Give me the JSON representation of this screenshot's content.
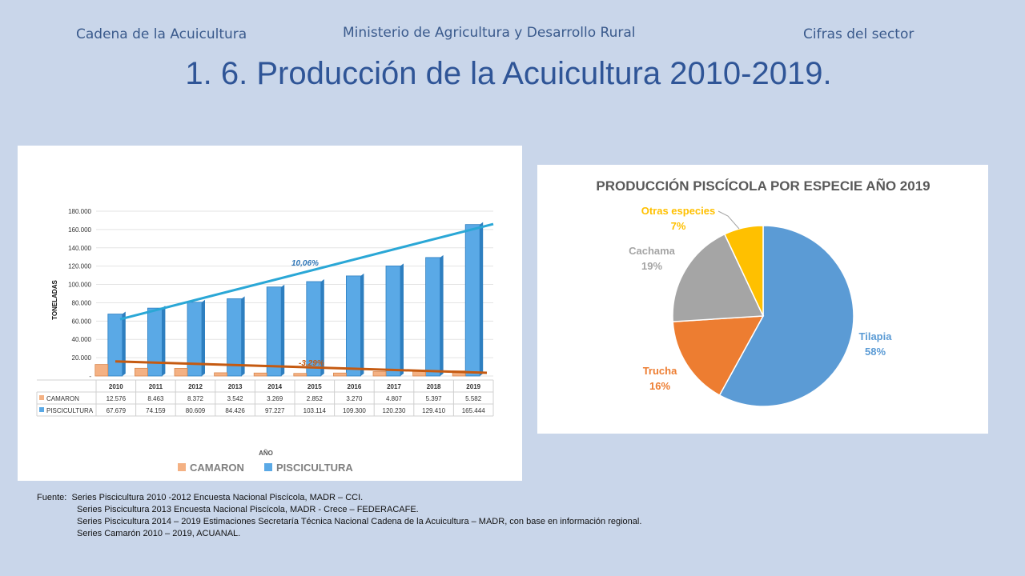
{
  "header": {
    "left": "Cadena de la Acuicultura",
    "center": "Ministerio de Agricultura y Desarrollo Rural",
    "right": "Cifras del sector"
  },
  "title": "1. 6. Producción de la Acuicultura 2010-2019.",
  "chart_data": [
    {
      "type": "bar",
      "ylabel": "TONELADAS",
      "xlabel": "AÑO",
      "ylim": [
        0,
        180000
      ],
      "y_ticks": [
        "-",
        "20.000",
        "40.000",
        "60.000",
        "80.000",
        "100.000",
        "120.000",
        "140.000",
        "160.000",
        "180.000"
      ],
      "categories": [
        "2010",
        "2011",
        "2012",
        "2013",
        "2014",
        "2015",
        "2016",
        "2017",
        "2018",
        "2019"
      ],
      "series": [
        {
          "name": "CAMARON",
          "color": "#f4b183",
          "values": [
            12576,
            8463,
            8372,
            3542,
            3269,
            2852,
            3270,
            4807,
            5397,
            5582
          ],
          "labels": [
            "12.576",
            "8.463",
            "8.372",
            "3.542",
            "3.269",
            "2.852",
            "3.270",
            "4.807",
            "5.397",
            "5.582"
          ],
          "trend_label": "-3,29%",
          "trend_color": "#c55a11"
        },
        {
          "name": "PISCICULTURA",
          "color": "#5aa9e6",
          "values": [
            67679,
            74159,
            80609,
            84426,
            97227,
            103114,
            109300,
            120230,
            129410,
            165444
          ],
          "labels": [
            "67.679",
            "74.159",
            "80.609",
            "84.426",
            "97.227",
            "103.114",
            "109.300",
            "120.230",
            "129.410",
            "165.444"
          ],
          "trend_label": "10,06%",
          "trend_color": "#2aa7d6"
        }
      ],
      "legend_position": "bottom"
    },
    {
      "type": "pie",
      "title": "PRODUCCIÓN PISCÍCOLA POR ESPECIE AÑO 2019",
      "slices": [
        {
          "name": "Tilapia",
          "value": 58,
          "label": "58%",
          "color": "#5b9bd5"
        },
        {
          "name": "Trucha",
          "value": 16,
          "label": "16%",
          "color": "#ed7d31"
        },
        {
          "name": "Cachama",
          "value": 19,
          "label": "19%",
          "color": "#a5a5a5"
        },
        {
          "name": "Otras especies",
          "value": 7,
          "label": "7%",
          "color": "#ffc000"
        }
      ]
    }
  ],
  "source": {
    "label": "Fuente:",
    "lines": [
      "Series Piscicultura 2010 -2012 Encuesta Nacional Piscícola, MADR – CCI.",
      "Series Piscicultura 2013 Encuesta Nacional Piscícola, MADR - Crece – FEDERACAFE.",
      "Series Piscicultura 2014 – 2019 Estimaciones Secretaría Técnica Nacional Cadena de la Acuicultura – MADR, con base en información regional.",
      "Series Camarón 2010 – 2019, ACUANAL."
    ]
  }
}
